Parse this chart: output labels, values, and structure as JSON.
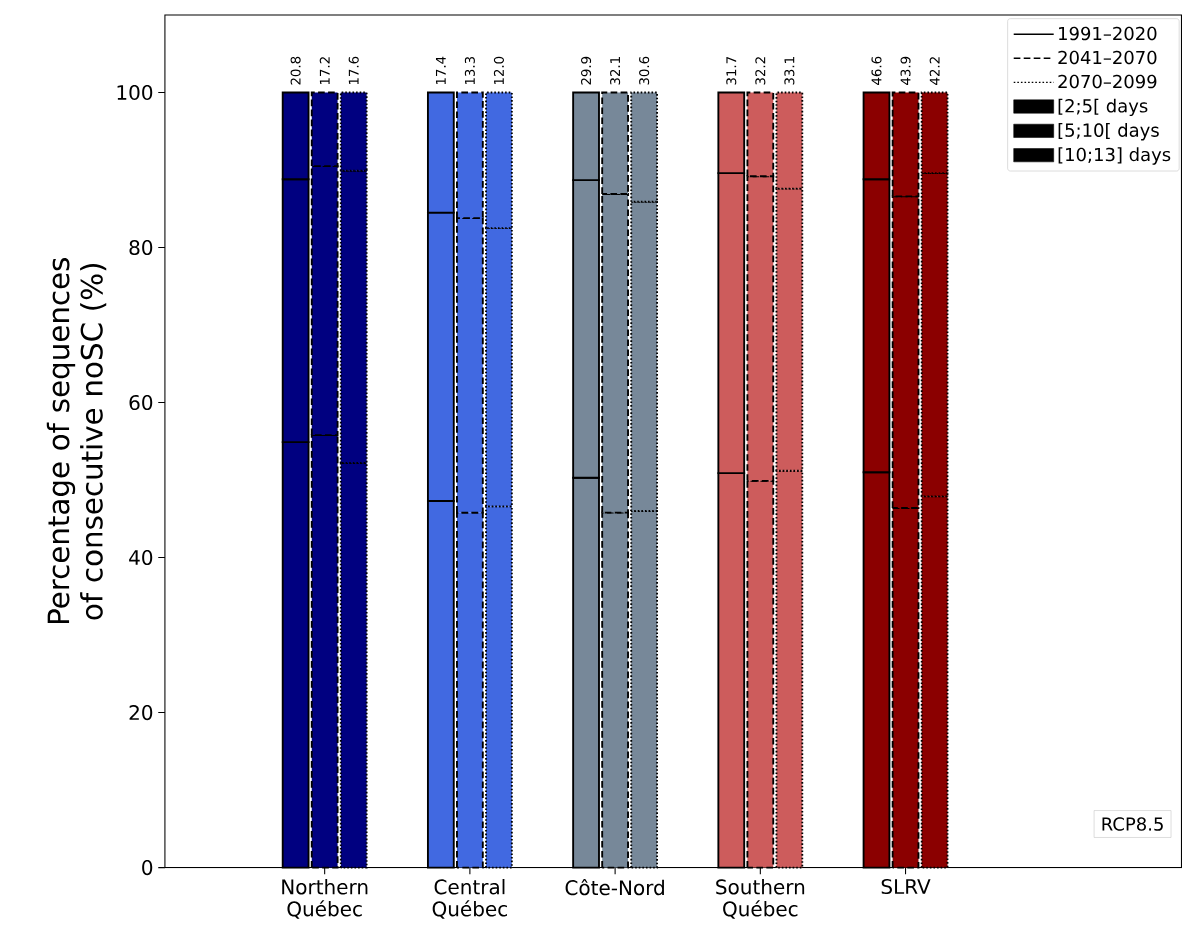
{
  "chart_data": {
    "type": "bar",
    "stacked": true,
    "legend": "top right",
    "ylabel": "Percentage of sequences of consecutive noSC (%)",
    "categories": [
      null,
      null,
      null,
      null,
      null,
      "Northern Québec",
      null,
      null,
      null,
      null,
      "Central Québec",
      null,
      null,
      null,
      null,
      "Côte-Nord",
      null,
      null,
      null,
      null,
      "Southern Québec",
      null,
      null,
      null,
      null,
      "SLRV",
      null,
      null,
      null,
      null,
      null,
      null,
      null,
      null,
      null
    ],
    "ylim": [
      0,
      110
    ],
    "yticks": [
      0,
      20,
      40,
      60,
      80,
      100
    ],
    "annotations": [
      "[2;5[ days",
      "[5;10[ days",
      "[10;13] days",
      "20.8",
      "17.2",
      "17.6",
      "17.4",
      "13.3",
      "12.0",
      "29.9",
      "32.1",
      "30.6",
      "31.7",
      "32.2",
      "33.1",
      "46.6",
      "43.9",
      "42.2",
      "RCP8.5"
    ],
    "series": [
      {
        "name": "1991–2020",
        "line_style": "solid",
        "colors": [
          null,
          null,
          null,
          null,
          "#000080",
          null,
          null,
          null,
          null,
          "#4169e1",
          null,
          null,
          null,
          null,
          "#778899",
          null,
          null,
          null,
          null,
          "#cd5c5c",
          null,
          null,
          null,
          null,
          "#8b0000",
          null,
          null,
          null,
          null,
          null,
          null,
          null,
          null,
          null,
          null
        ],
        "values": [
          null,
          null,
          null,
          null,
          54.9,
          null,
          null,
          null,
          null,
          47.3,
          null,
          null,
          null,
          null,
          50.3,
          null,
          null,
          null,
          null,
          50.9,
          null,
          null,
          null,
          null,
          51.0,
          null,
          null,
          null,
          null,
          null,
          null,
          null,
          null,
          null,
          null
        ]
      },
      {
        "line_style": "solid",
        "colors": [
          null,
          null,
          null,
          null,
          "#000080",
          null,
          null,
          null,
          null,
          "#4169e1",
          null,
          null,
          null,
          null,
          "#778899",
          null,
          null,
          null,
          null,
          "#cd5c5c",
          null,
          null,
          null,
          null,
          "#8b0000",
          null,
          null,
          null,
          null,
          null,
          null,
          null,
          null,
          null,
          null
        ],
        "values": [
          null,
          null,
          null,
          null,
          33.9,
          null,
          null,
          null,
          null,
          37.2,
          null,
          null,
          null,
          null,
          38.4,
          null,
          null,
          null,
          null,
          38.7,
          null,
          null,
          null,
          null,
          37.8,
          null,
          null,
          null,
          null,
          null,
          null,
          null,
          null,
          null,
          null
        ]
      },
      {
        "line_style": "solid",
        "colors": [
          null,
          null,
          null,
          null,
          "#000080",
          null,
          null,
          null,
          null,
          "#4169e1",
          null,
          null,
          null,
          null,
          "#778899",
          null,
          null,
          null,
          null,
          "#cd5c5c",
          null,
          null,
          null,
          null,
          "#8b0000",
          null,
          null,
          null,
          null,
          null,
          null,
          null,
          null,
          null,
          null
        ],
        "values": [
          null,
          null,
          null,
          null,
          11.2,
          null,
          null,
          null,
          null,
          15.5,
          null,
          null,
          null,
          null,
          11.3,
          null,
          null,
          null,
          null,
          10.4,
          null,
          null,
          null,
          null,
          11.2,
          null,
          null,
          null,
          null,
          null,
          null,
          null,
          null,
          null,
          null
        ]
      },
      {
        "name": "2041–2070",
        "line_style": "dashed",
        "colors": [
          null,
          null,
          null,
          null,
          null,
          "#000080",
          null,
          null,
          null,
          null,
          "#4169e1",
          null,
          null,
          null,
          null,
          "#778899",
          null,
          null,
          null,
          null,
          "#cd5c5c",
          null,
          null,
          null,
          null,
          "#8b0000",
          null,
          null,
          null,
          null,
          null,
          null,
          null,
          null,
          null
        ],
        "values": [
          null,
          null,
          null,
          null,
          null,
          55.8,
          null,
          null,
          null,
          null,
          45.8,
          null,
          null,
          null,
          null,
          45.8,
          null,
          null,
          null,
          null,
          49.9,
          null,
          null,
          null,
          null,
          46.4,
          null,
          null,
          null,
          null,
          null,
          null,
          null,
          null,
          null
        ]
      },
      {
        "line_style": "dashed",
        "colors": [
          null,
          null,
          null,
          null,
          null,
          "#000080",
          null,
          null,
          null,
          null,
          "#4169e1",
          null,
          null,
          null,
          null,
          "#778899",
          null,
          null,
          null,
          null,
          "#cd5c5c",
          null,
          null,
          null,
          null,
          "#8b0000",
          null,
          null,
          null,
          null,
          null,
          null,
          null,
          null,
          null
        ],
        "values": [
          null,
          null,
          null,
          null,
          null,
          34.7,
          null,
          null,
          null,
          null,
          38.0,
          null,
          null,
          null,
          null,
          41.1,
          null,
          null,
          null,
          null,
          39.3,
          null,
          null,
          null,
          null,
          40.2,
          null,
          null,
          null,
          null,
          null,
          null,
          null,
          null,
          null
        ]
      },
      {
        "line_style": "dashed",
        "colors": [
          null,
          null,
          null,
          null,
          null,
          "#000080",
          null,
          null,
          null,
          null,
          "#4169e1",
          null,
          null,
          null,
          null,
          "#778899",
          null,
          null,
          null,
          null,
          "#cd5c5c",
          null,
          null,
          null,
          null,
          "#8b0000",
          null,
          null,
          null,
          null,
          null,
          null,
          null,
          null,
          null
        ],
        "values": [
          null,
          null,
          null,
          null,
          null,
          9.5,
          null,
          null,
          null,
          null,
          16.2,
          null,
          null,
          null,
          null,
          13.1,
          null,
          null,
          null,
          null,
          10.8,
          null,
          null,
          null,
          null,
          13.4,
          null,
          null,
          null,
          null,
          null,
          null,
          null,
          null,
          null
        ]
      },
      {
        "name": "2070–2099",
        "line_style": "dotted",
        "colors": [
          null,
          null,
          null,
          null,
          null,
          null,
          "#000080",
          null,
          null,
          null,
          null,
          "#4169e1",
          null,
          null,
          null,
          null,
          "#778899",
          null,
          null,
          null,
          null,
          "#cd5c5c",
          null,
          null,
          null,
          null,
          "#8b0000",
          null,
          null,
          null,
          null,
          null,
          null,
          null,
          null
        ],
        "values": [
          null,
          null,
          null,
          null,
          null,
          null,
          52.2,
          null,
          null,
          null,
          null,
          46.6,
          null,
          null,
          null,
          null,
          46.0,
          null,
          null,
          null,
          null,
          51.2,
          null,
          null,
          null,
          null,
          47.9,
          null,
          null,
          null,
          null,
          null,
          null,
          null,
          null
        ]
      },
      {
        "line_style": "dotted",
        "colors": [
          null,
          null,
          null,
          null,
          null,
          null,
          "#000080",
          null,
          null,
          null,
          null,
          "#4169e1",
          null,
          null,
          null,
          null,
          "#778899",
          null,
          null,
          null,
          null,
          "#cd5c5c",
          null,
          null,
          null,
          null,
          "#8b0000",
          null,
          null,
          null,
          null,
          null,
          null,
          null,
          null
        ],
        "values": [
          null,
          null,
          null,
          null,
          null,
          null,
          37.7,
          null,
          null,
          null,
          null,
          35.9,
          null,
          null,
          null,
          null,
          39.9,
          null,
          null,
          null,
          null,
          36.4,
          null,
          null,
          null,
          null,
          41.7,
          null,
          null,
          null,
          null,
          null,
          null,
          null,
          null
        ]
      },
      {
        "line_style": "dotted",
        "colors": [
          null,
          null,
          null,
          null,
          null,
          null,
          "#000080",
          null,
          null,
          null,
          null,
          "#4169e1",
          null,
          null,
          null,
          null,
          "#778899",
          null,
          null,
          null,
          null,
          "#cd5c5c",
          null,
          null,
          null,
          null,
          "#8b0000",
          null,
          null,
          null,
          null,
          null,
          null,
          null,
          null
        ],
        "values": [
          null,
          null,
          null,
          null,
          null,
          null,
          10.1,
          null,
          null,
          null,
          null,
          17.5,
          null,
          null,
          null,
          null,
          14.1,
          null,
          null,
          null,
          null,
          12.4,
          null,
          null,
          null,
          null,
          10.4,
          null,
          null,
          null,
          null,
          null,
          null,
          null,
          null
        ]
      }
    ]
  }
}
